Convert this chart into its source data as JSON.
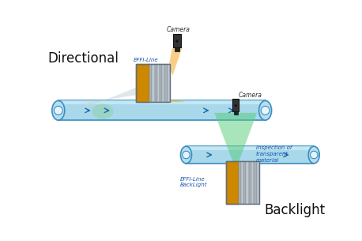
{
  "bg_color": "#ffffff",
  "label_directional": "Directional",
  "label_backlight": "Backlight",
  "label_camera_top": "Camera",
  "label_camera_bottom": "Camera",
  "label_effi_line": "EFFI-Line",
  "label_effi_backlight": "EFFI-Line\nBackLight",
  "label_inspection": "Inspection of\ntransparent\nmaterial",
  "conveyor_color": "#a8d8ea",
  "conveyor_edge_color": "#3a8fbf",
  "conveyor_highlight": "#d0eef8",
  "arrow_color": "#1a6aaa",
  "light_beam_color": "#f5a623",
  "light_beam_alpha": 0.55,
  "green_beam_color": "#55cc77",
  "green_beam_alpha": 0.5,
  "device_body_color": "#cc8800",
  "device_metal_color": "#a0a8b0",
  "device_metal_edge": "#707880",
  "camera_color": "#333333",
  "roller_color": "#b8ddf0",
  "roller_edge_color": "#3a8fbf",
  "roller_inner_color": "#e8f4fc",
  "text_color_label": "#1a55aa",
  "text_color_title": "#111111",
  "refl_color": "#c8d4dc",
  "refl_alpha": 0.55
}
